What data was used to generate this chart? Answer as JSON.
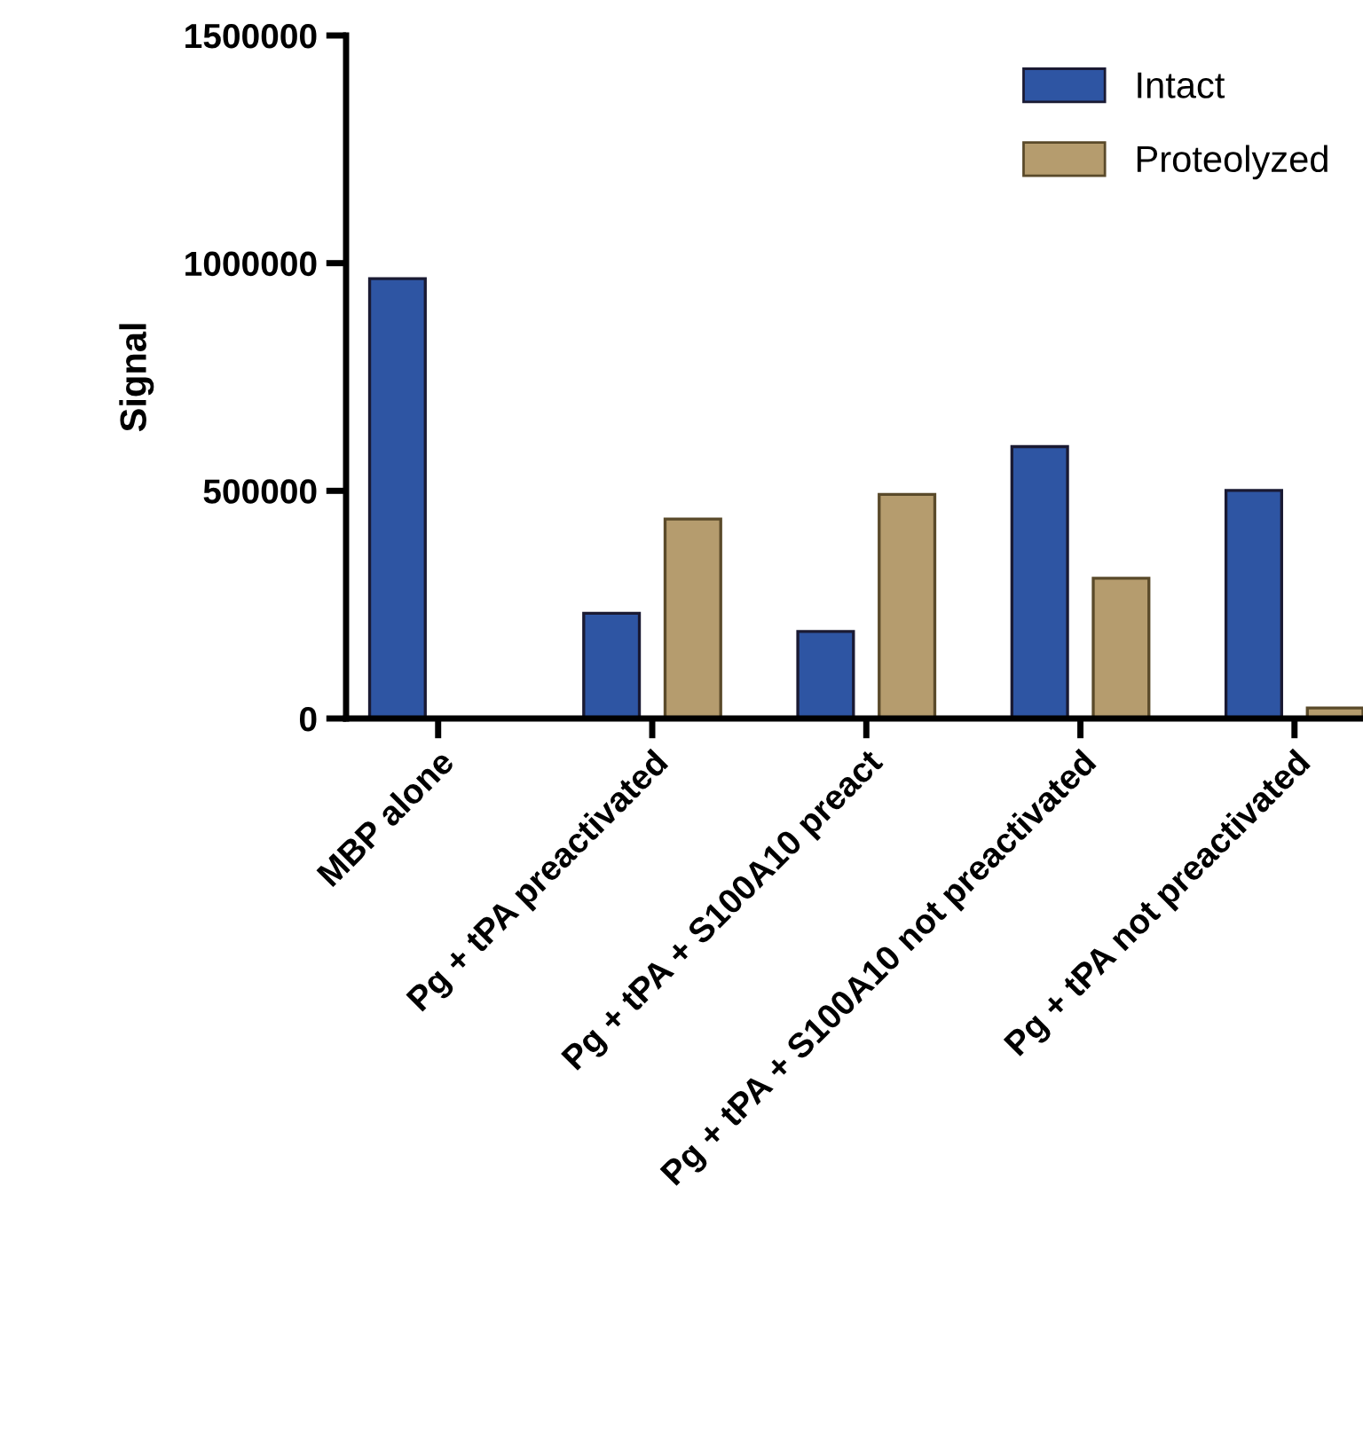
{
  "chart_data": {
    "type": "bar",
    "ylabel": "Signal",
    "categories": [
      "MBP alone",
      "Pg + tPA preactivated",
      "Pg + tPA + S100A10 preact",
      "Pg + tPA + S100A10 not preactivated",
      "Pg + tPA not preactivated"
    ],
    "series": [
      {
        "name": "Intact",
        "color": "#2e55a3",
        "values": [
          966000,
          231000,
          191000,
          597000,
          501000
        ]
      },
      {
        "name": "Proteolyzed",
        "color": "#b59c6e",
        "values": [
          null,
          438000,
          492000,
          308000,
          23000
        ]
      }
    ],
    "ylim": [
      0,
      1500000
    ],
    "yticks": [
      0,
      500000,
      1000000,
      1500000
    ],
    "grid": false,
    "legend": "top right"
  }
}
